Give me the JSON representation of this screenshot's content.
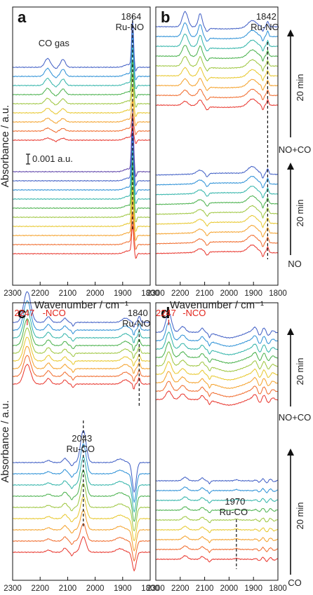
{
  "chart_data": [
    {
      "type": "line",
      "panel": "a",
      "xlabel": "Wavenumber / cm⁻¹",
      "ylabel": "Absorbance / a.u.",
      "xlim": [
        2300,
        1800
      ],
      "x_ticks": [
        2300,
        2200,
        2100,
        2000,
        1900,
        1800
      ],
      "scale_bar": "0.001 a.u.",
      "annotations": [
        {
          "text": "1864",
          "x": 1864
        },
        {
          "text": "Ru-NO",
          "x": 1864
        },
        {
          "text": "CO gas",
          "x": 2150
        }
      ],
      "gas_labels": [],
      "time_labels": []
    },
    {
      "type": "line",
      "panel": "b",
      "xlabel": "Wavenumber / cm⁻¹",
      "xlim": [
        2300,
        1800
      ],
      "x_ticks": [
        2300,
        2200,
        2100,
        2000,
        1900,
        1800
      ],
      "annotations": [
        {
          "text": "1842",
          "x": 1842
        },
        {
          "text": "Ru-NO",
          "x": 1842
        }
      ],
      "gas_labels": [
        "NO+CO",
        "NO"
      ],
      "time_labels": [
        "20 min",
        "20 min"
      ]
    },
    {
      "type": "line",
      "panel": "c",
      "xlabel": "Wavenumber / cm⁻¹",
      "ylabel": "Absorbance / a.u.",
      "xlim": [
        2300,
        1800
      ],
      "x_ticks": [
        2300,
        2200,
        2100,
        2000,
        1900,
        1800
      ],
      "annotations": [
        {
          "text": "1840",
          "x": 1840
        },
        {
          "text": "Ru-NO",
          "x": 1840
        },
        {
          "text": "2043",
          "x": 2043
        },
        {
          "text": "Ru-CO",
          "x": 2043
        }
      ],
      "red_annotations": [
        {
          "text": "2247",
          "x": 2247
        },
        {
          "text": "-NCO",
          "x": 2200
        }
      ],
      "gas_labels": [],
      "time_labels": []
    },
    {
      "type": "line",
      "panel": "d",
      "xlabel": "Wavenumber / cm⁻¹",
      "xlim": [
        2300,
        1800
      ],
      "x_ticks": [
        2300,
        2200,
        2100,
        2000,
        1900,
        1800
      ],
      "annotations": [
        {
          "text": "1970",
          "x": 1970
        },
        {
          "text": "Ru-CO",
          "x": 1970
        }
      ],
      "red_annotations": [
        {
          "text": "2247",
          "x": 2247
        },
        {
          "text": "-NCO",
          "x": 2200
        }
      ],
      "gas_labels": [
        "NO+CO",
        "CO"
      ],
      "time_labels": [
        "20 min",
        "20 min"
      ]
    }
  ]
}
